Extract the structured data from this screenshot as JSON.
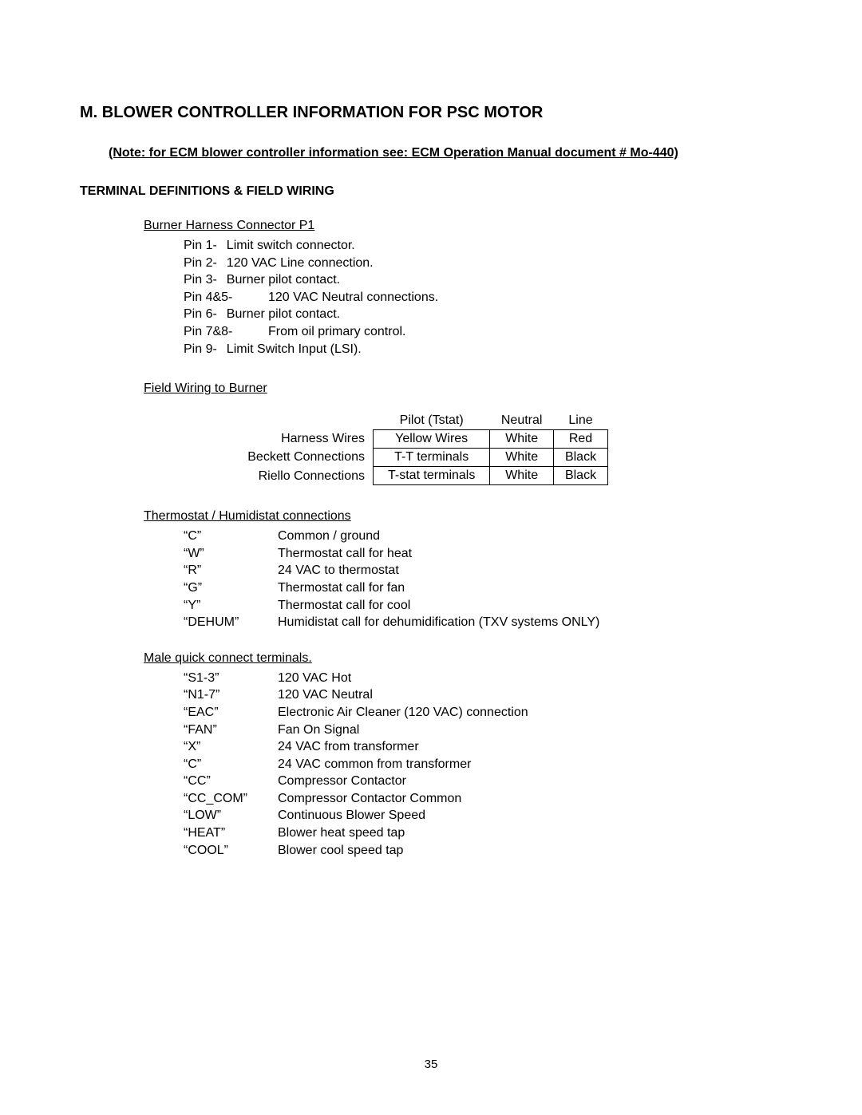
{
  "page": {
    "section_letter_title": "M.  BLOWER CONTROLLER INFORMATION FOR PSC MOTOR",
    "note": "(Note: for ECM blower controller information see: ECM Operation Manual document # Mo-440)",
    "subheading": "TERMINAL DEFINITIONS & FIELD WIRING",
    "page_number": "35"
  },
  "burner_harness": {
    "heading": "Burner Harness Connector P1",
    "pins": [
      {
        "label": "Pin 1-",
        "desc": "Limit switch connector."
      },
      {
        "label": "Pin 2-",
        "desc": "120 VAC Line connection."
      },
      {
        "label": "Pin 3-",
        "desc": "Burner pilot contact."
      },
      {
        "label": "Pin 4&5-",
        "desc": "120 VAC Neutral connections.",
        "wide": true
      },
      {
        "label": "Pin 6-",
        "desc": "Burner pilot contact."
      },
      {
        "label": "Pin 7&8-",
        "desc": "From oil primary control.",
        "wide": true
      },
      {
        "label": "Pin 9-",
        "desc": "Limit Switch Input (LSI)."
      }
    ]
  },
  "field_wiring": {
    "heading": "Field Wiring to Burner",
    "row_labels": [
      "Harness Wires",
      "Beckett Connections",
      "Riello Connections"
    ],
    "table": {
      "headers": [
        "Pilot (Tstat)",
        "Neutral",
        "Line"
      ],
      "rows": [
        [
          "Yellow Wires",
          "White",
          "Red"
        ],
        [
          "T-T terminals",
          "White",
          "Black"
        ],
        [
          "T-stat terminals",
          "White",
          "Black"
        ]
      ]
    }
  },
  "thermostat": {
    "heading": "Thermostat / Humidistat connections",
    "items": [
      {
        "key": "“C”",
        "val": "Common / ground"
      },
      {
        "key": "“W”",
        "val": "Thermostat call for heat"
      },
      {
        "key": "“R”",
        "val": "24 VAC to thermostat"
      },
      {
        "key": "“G”",
        "val": "Thermostat call for fan"
      },
      {
        "key": "“Y”",
        "val": "Thermostat call for cool"
      },
      {
        "key": "“DEHUM”",
        "val": "Humidistat call for dehumidification (TXV systems ONLY)"
      }
    ]
  },
  "male_qc": {
    "heading": "Male quick connect terminals.",
    "items": [
      {
        "key": "“S1-3”",
        "val": "120 VAC Hot"
      },
      {
        "key": "“N1-7”",
        "val": "120 VAC Neutral"
      },
      {
        "key": "“EAC”",
        "val": "Electronic Air Cleaner (120 VAC) connection"
      },
      {
        "key": "“FAN”",
        "val": "Fan On Signal"
      },
      {
        "key": "“X”",
        "val": "24 VAC from transformer"
      },
      {
        "key": "“C”",
        "val": "24 VAC common from transformer"
      },
      {
        "key": "“CC”",
        "val": "Compressor Contactor"
      },
      {
        "key": "“CC_COM”",
        "val": "Compressor Contactor Common"
      },
      {
        "key": "“LOW”",
        "val": "Continuous Blower Speed"
      },
      {
        "key": "“HEAT”",
        "val": "Blower heat speed tap"
      },
      {
        "key": "“COOL”",
        "val": "Blower cool speed tap"
      }
    ]
  }
}
